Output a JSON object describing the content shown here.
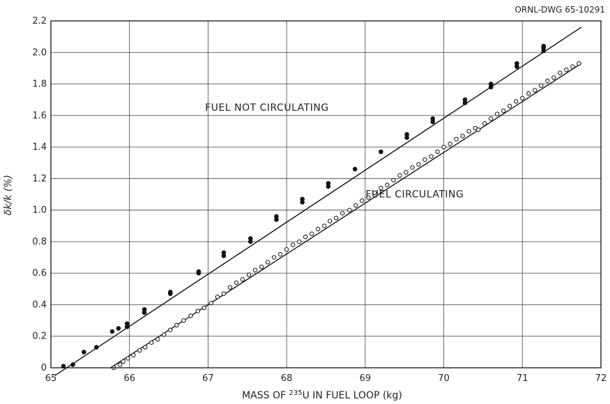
{
  "chart_data": {
    "type": "scatter",
    "drawing_number": "ORNL-DWG 65-10291",
    "xlabel_prefix": "MASS OF ",
    "xlabel_superscript": "235",
    "xlabel_suffix": "U IN FUEL LOOP (kg)",
    "ylabel": "δk/k (%)",
    "xlim": [
      65,
      72
    ],
    "ylim": [
      0,
      2.2
    ],
    "x_ticks": [
      "65",
      "66",
      "67",
      "68",
      "69",
      "70",
      "71",
      "72"
    ],
    "y_ticks": [
      "0",
      "0.2",
      "0.4",
      "0.6",
      "0.8",
      "1.0",
      "1.2",
      "1.4",
      "1.6",
      "1.8",
      "2.0",
      "2.2"
    ],
    "grid": true,
    "annotations": [
      {
        "text": "FUEL NOT CIRCULATING",
        "x": 67.75,
        "y": 1.63
      },
      {
        "text": "FUEL CIRCULATING",
        "x": 69.63,
        "y": 1.08
      }
    ],
    "series": [
      {
        "marker": "filled",
        "fit_line": {
          "x": [
            65.05,
            71.75
          ],
          "y": [
            -0.05,
            2.16
          ]
        },
        "points": [
          [
            65.16,
            0.01
          ],
          [
            65.28,
            0.02
          ],
          [
            65.42,
            0.1
          ],
          [
            65.58,
            0.13
          ],
          [
            65.78,
            0.23
          ],
          [
            65.86,
            0.25
          ],
          [
            65.97,
            0.26
          ],
          [
            65.97,
            0.28
          ],
          [
            66.19,
            0.35
          ],
          [
            66.19,
            0.37
          ],
          [
            66.52,
            0.47
          ],
          [
            66.52,
            0.48
          ],
          [
            66.88,
            0.6
          ],
          [
            66.88,
            0.61
          ],
          [
            67.2,
            0.71
          ],
          [
            67.2,
            0.73
          ],
          [
            67.54,
            0.8
          ],
          [
            67.54,
            0.82
          ],
          [
            67.87,
            0.94
          ],
          [
            67.87,
            0.96
          ],
          [
            68.2,
            1.05
          ],
          [
            68.2,
            1.07
          ],
          [
            68.53,
            1.15
          ],
          [
            68.53,
            1.17
          ],
          [
            68.87,
            1.26
          ],
          [
            69.2,
            1.37
          ],
          [
            69.53,
            1.46
          ],
          [
            69.53,
            1.48
          ],
          [
            69.86,
            1.56
          ],
          [
            69.86,
            1.58
          ],
          [
            70.27,
            1.68
          ],
          [
            70.27,
            1.7
          ],
          [
            70.6,
            1.78
          ],
          [
            70.6,
            1.8
          ],
          [
            70.93,
            1.91
          ],
          [
            70.93,
            1.93
          ],
          [
            71.27,
            2.01
          ],
          [
            71.27,
            2.03
          ],
          [
            71.27,
            2.04
          ]
        ]
      },
      {
        "marker": "open",
        "fit_line": {
          "x": [
            65.76,
            71.75
          ],
          "y": [
            0.0,
            1.93
          ]
        },
        "points": [
          [
            65.8,
            0.0
          ],
          [
            65.88,
            0.02
          ],
          [
            65.92,
            0.04
          ],
          [
            65.98,
            0.06
          ],
          [
            66.05,
            0.08
          ],
          [
            66.13,
            0.11
          ],
          [
            66.2,
            0.13
          ],
          [
            66.28,
            0.16
          ],
          [
            66.36,
            0.18
          ],
          [
            66.44,
            0.21
          ],
          [
            66.52,
            0.24
          ],
          [
            66.6,
            0.27
          ],
          [
            66.69,
            0.3
          ],
          [
            66.78,
            0.33
          ],
          [
            66.87,
            0.36
          ],
          [
            66.95,
            0.38
          ],
          [
            67.04,
            0.41
          ],
          [
            67.12,
            0.45
          ],
          [
            67.2,
            0.47
          ],
          [
            67.28,
            0.51
          ],
          [
            67.36,
            0.54
          ],
          [
            67.44,
            0.56
          ],
          [
            67.52,
            0.59
          ],
          [
            67.6,
            0.62
          ],
          [
            67.68,
            0.64
          ],
          [
            67.76,
            0.67
          ],
          [
            67.84,
            0.7
          ],
          [
            67.92,
            0.72
          ],
          [
            68.0,
            0.75
          ],
          [
            68.08,
            0.78
          ],
          [
            68.16,
            0.8
          ],
          [
            68.24,
            0.83
          ],
          [
            68.32,
            0.85
          ],
          [
            68.4,
            0.88
          ],
          [
            68.48,
            0.9
          ],
          [
            68.55,
            0.93
          ],
          [
            68.63,
            0.95
          ],
          [
            68.71,
            0.98
          ],
          [
            68.8,
            1.0
          ],
          [
            68.88,
            1.03
          ],
          [
            68.96,
            1.06
          ],
          [
            69.04,
            1.08
          ],
          [
            69.12,
            1.11
          ],
          [
            69.2,
            1.14
          ],
          [
            69.28,
            1.16
          ],
          [
            69.36,
            1.19
          ],
          [
            69.44,
            1.22
          ],
          [
            69.52,
            1.24
          ],
          [
            69.6,
            1.27
          ],
          [
            69.68,
            1.29
          ],
          [
            69.76,
            1.32
          ],
          [
            69.84,
            1.34
          ],
          [
            69.92,
            1.37
          ],
          [
            70.0,
            1.4
          ],
          [
            70.08,
            1.42
          ],
          [
            70.16,
            1.45
          ],
          [
            70.24,
            1.47
          ],
          [
            70.32,
            1.5
          ],
          [
            70.4,
            1.52
          ],
          [
            70.44,
            1.51
          ],
          [
            70.52,
            1.55
          ],
          [
            70.6,
            1.58
          ],
          [
            70.68,
            1.61
          ],
          [
            70.76,
            1.63
          ],
          [
            70.84,
            1.66
          ],
          [
            70.92,
            1.69
          ],
          [
            71.0,
            1.71
          ],
          [
            71.08,
            1.74
          ],
          [
            71.16,
            1.76
          ],
          [
            71.24,
            1.79
          ],
          [
            71.32,
            1.82
          ],
          [
            71.4,
            1.84
          ],
          [
            71.48,
            1.87
          ],
          [
            71.56,
            1.89
          ],
          [
            71.64,
            1.91
          ],
          [
            71.72,
            1.93
          ]
        ]
      }
    ]
  }
}
